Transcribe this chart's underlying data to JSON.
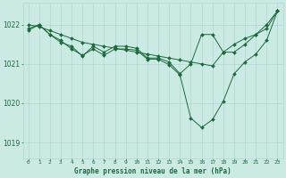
{
  "background_color": "#cceae4",
  "grid_color": "#aad4cc",
  "line_color": "#1a6b3a",
  "marker_color": "#1a6b3a",
  "xlabel": "Graphe pression niveau de la mer (hPa)",
  "xlim": [
    -0.5,
    23.5
  ],
  "ylim": [
    1018.6,
    1022.55
  ],
  "yticks": [
    1019,
    1020,
    1021,
    1022
  ],
  "xticks": [
    0,
    1,
    2,
    3,
    4,
    5,
    6,
    7,
    8,
    9,
    10,
    11,
    12,
    13,
    14,
    15,
    16,
    17,
    18,
    19,
    20,
    21,
    22,
    23
  ],
  "series1_x": [
    0,
    1,
    2,
    3,
    4,
    5,
    6,
    7,
    8,
    9,
    10,
    11,
    12,
    13,
    14,
    15,
    16,
    17,
    18,
    19,
    20,
    21,
    22,
    23
  ],
  "series1_y": [
    1022.0,
    1021.95,
    1021.85,
    1021.75,
    1021.65,
    1021.55,
    1021.5,
    1021.45,
    1021.4,
    1021.35,
    1021.3,
    1021.25,
    1021.2,
    1021.15,
    1021.1,
    1021.05,
    1021.0,
    1020.95,
    1021.3,
    1021.5,
    1021.65,
    1021.75,
    1021.9,
    1022.35
  ],
  "series2_x": [
    0,
    1,
    2,
    3,
    4,
    5,
    6,
    7,
    8,
    9,
    10,
    11,
    12,
    13,
    14,
    15,
    16,
    17,
    18,
    19,
    20,
    21,
    22,
    23
  ],
  "series2_y": [
    1021.85,
    1022.0,
    1021.75,
    1021.55,
    1021.45,
    1021.2,
    1021.45,
    1021.3,
    1021.45,
    1021.45,
    1021.4,
    1021.15,
    1021.15,
    1021.05,
    1020.75,
    1021.0,
    1021.75,
    1021.75,
    1021.3,
    1021.3,
    1021.5,
    1021.75,
    1022.0,
    1022.35
  ],
  "series3_x": [
    0,
    1,
    2,
    3,
    4,
    5,
    6,
    7,
    8,
    9,
    10,
    11,
    12,
    13,
    14,
    15,
    16,
    17,
    18,
    19,
    20,
    21,
    22,
    23
  ],
  "series3_y": [
    1021.9,
    1022.0,
    1021.75,
    1021.6,
    1021.38,
    1021.22,
    1021.38,
    1021.22,
    1021.38,
    1021.38,
    1021.35,
    1021.12,
    1021.12,
    1020.98,
    1020.72,
    1019.62,
    1019.38,
    1019.58,
    1020.05,
    1020.75,
    1021.05,
    1021.25,
    1021.6,
    1022.35
  ]
}
